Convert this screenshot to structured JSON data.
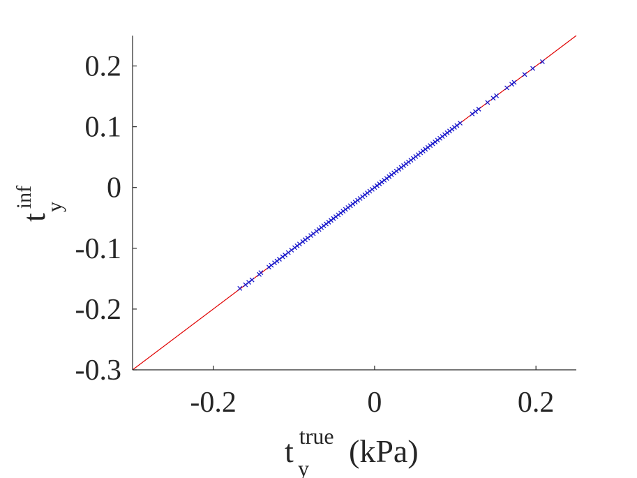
{
  "chart_data": {
    "type": "scatter",
    "xlabel": {
      "base": "t",
      "sub": "y",
      "sup": "true",
      "unit": "(kPa)"
    },
    "ylabel": {
      "base": "t",
      "sub": "y",
      "sup": "inf"
    },
    "xlim": [
      -0.3,
      0.25
    ],
    "ylim": [
      -0.3,
      0.25
    ],
    "xticks": [
      -0.2,
      0,
      0.2
    ],
    "xtick_labels": [
      "-0.2",
      "0",
      "0.2"
    ],
    "yticks": [
      -0.3,
      -0.2,
      -0.1,
      0,
      0.1,
      0.2
    ],
    "ytick_labels": [
      "-0.3",
      "-0.2",
      "-0.1",
      "0",
      "0.1",
      "0.2"
    ],
    "grid": false,
    "reference_line": {
      "x": [
        -0.3,
        0.25
      ],
      "y": [
        -0.3,
        0.25
      ],
      "color": "#e00000"
    },
    "series": [
      {
        "marker": "x",
        "color": "#1a1acc",
        "points": [
          [
            -0.167,
            -0.166
          ],
          [
            -0.16,
            -0.16
          ],
          [
            -0.156,
            -0.156
          ],
          [
            -0.152,
            -0.152
          ],
          [
            -0.143,
            -0.143
          ],
          [
            -0.141,
            -0.14
          ],
          [
            -0.131,
            -0.131
          ],
          [
            -0.128,
            -0.128
          ],
          [
            -0.124,
            -0.124
          ],
          [
            -0.121,
            -0.121
          ],
          [
            -0.118,
            -0.118
          ],
          [
            -0.114,
            -0.114
          ],
          [
            -0.111,
            -0.111
          ],
          [
            -0.107,
            -0.107
          ],
          [
            -0.103,
            -0.103
          ],
          [
            -0.099,
            -0.099
          ],
          [
            -0.096,
            -0.096
          ],
          [
            -0.093,
            -0.093
          ],
          [
            -0.089,
            -0.089
          ],
          [
            -0.086,
            -0.086
          ],
          [
            -0.083,
            -0.083
          ],
          [
            -0.079,
            -0.079
          ],
          [
            -0.076,
            -0.076
          ],
          [
            -0.072,
            -0.072
          ],
          [
            -0.069,
            -0.069
          ],
          [
            -0.066,
            -0.066
          ],
          [
            -0.063,
            -0.063
          ],
          [
            -0.06,
            -0.06
          ],
          [
            -0.057,
            -0.057
          ],
          [
            -0.054,
            -0.054
          ],
          [
            -0.051,
            -0.051
          ],
          [
            -0.048,
            -0.048
          ],
          [
            -0.045,
            -0.045
          ],
          [
            -0.042,
            -0.042
          ],
          [
            -0.039,
            -0.039
          ],
          [
            -0.036,
            -0.036
          ],
          [
            -0.033,
            -0.033
          ],
          [
            -0.03,
            -0.03
          ],
          [
            -0.027,
            -0.027
          ],
          [
            -0.024,
            -0.024
          ],
          [
            -0.021,
            -0.021
          ],
          [
            -0.018,
            -0.018
          ],
          [
            -0.015,
            -0.015
          ],
          [
            -0.012,
            -0.012
          ],
          [
            -0.009,
            -0.009
          ],
          [
            -0.006,
            -0.006
          ],
          [
            -0.003,
            -0.003
          ],
          [
            0.0,
            0.0
          ],
          [
            0.003,
            0.003
          ],
          [
            0.006,
            0.006
          ],
          [
            0.009,
            0.009
          ],
          [
            0.012,
            0.012
          ],
          [
            0.015,
            0.015
          ],
          [
            0.018,
            0.018
          ],
          [
            0.021,
            0.021
          ],
          [
            0.024,
            0.024
          ],
          [
            0.027,
            0.027
          ],
          [
            0.03,
            0.03
          ],
          [
            0.033,
            0.033
          ],
          [
            0.036,
            0.036
          ],
          [
            0.039,
            0.039
          ],
          [
            0.042,
            0.042
          ],
          [
            0.045,
            0.045
          ],
          [
            0.048,
            0.048
          ],
          [
            0.051,
            0.051
          ],
          [
            0.054,
            0.054
          ],
          [
            0.057,
            0.057
          ],
          [
            0.06,
            0.06
          ],
          [
            0.063,
            0.063
          ],
          [
            0.066,
            0.066
          ],
          [
            0.069,
            0.069
          ],
          [
            0.072,
            0.072
          ],
          [
            0.075,
            0.075
          ],
          [
            0.078,
            0.078
          ],
          [
            0.081,
            0.081
          ],
          [
            0.084,
            0.084
          ],
          [
            0.087,
            0.087
          ],
          [
            0.09,
            0.09
          ],
          [
            0.093,
            0.093
          ],
          [
            0.096,
            0.096
          ],
          [
            0.099,
            0.099
          ],
          [
            0.102,
            0.102
          ],
          [
            0.106,
            0.106
          ],
          [
            0.121,
            0.121
          ],
          [
            0.125,
            0.125
          ],
          [
            0.129,
            0.129
          ],
          [
            0.14,
            0.14
          ],
          [
            0.147,
            0.147
          ],
          [
            0.151,
            0.151
          ],
          [
            0.164,
            0.164
          ],
          [
            0.17,
            0.17
          ],
          [
            0.173,
            0.173
          ],
          [
            0.186,
            0.186
          ],
          [
            0.196,
            0.196
          ],
          [
            0.208,
            0.207
          ]
        ]
      }
    ]
  }
}
